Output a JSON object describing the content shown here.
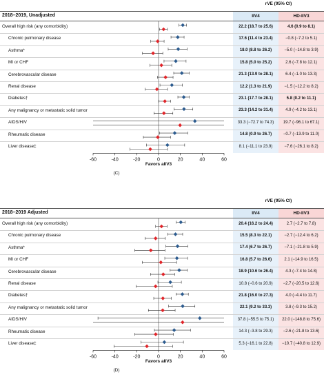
{
  "chart_data": [
    {
      "type": "forest",
      "panel_label": "(C)",
      "title": "2018–2019, Unadjusted",
      "column_header": "rVE (95% CI)",
      "columns": [
        "IIV4",
        "HD-IIV3"
      ],
      "xlabel": "Favors aIIV3",
      "xlim": [
        -60,
        60
      ],
      "xticks": [
        -60,
        -40,
        -20,
        0,
        20,
        40,
        60
      ],
      "colors": {
        "iiv4": "#2c5b8e",
        "hd_iiv3": "#e0252a"
      },
      "rows": [
        {
          "label": "Overall high risk (any comorbidity)",
          "indent": false,
          "iiv4": {
            "text": "22.2 (18.7 to 25.6)",
            "bold": true,
            "est": 22.2,
            "lo": 18.7,
            "hi": 25.6
          },
          "hd": {
            "text": "4.6 (0.9 to 8.1)",
            "bold": true,
            "est": 4.6,
            "lo": 0.9,
            "hi": 8.1
          }
        },
        {
          "label": "Chronic pulmonary disease",
          "indent": true,
          "iiv4": {
            "text": "17.6 (11.4 to 23.4)",
            "bold": true,
            "est": 17.6,
            "lo": 11.4,
            "hi": 23.4
          },
          "hd": {
            "text": "−0.8 (−7.2 to 5.1)",
            "bold": false,
            "est": -0.8,
            "lo": -7.2,
            "hi": 5.1
          }
        },
        {
          "label": "Asthma*",
          "indent": true,
          "iiv4": {
            "text": "18.0 (8.8 to 26.2)",
            "bold": true,
            "est": 18.0,
            "lo": 8.8,
            "hi": 26.2
          },
          "hd": {
            "text": "−5.0 (−14.8 to 3.9)",
            "bold": false,
            "est": -5.0,
            "lo": -14.8,
            "hi": 3.9
          }
        },
        {
          "label": "MI or CHF",
          "indent": true,
          "iiv4": {
            "text": "15.8 (5.0 to 25.2)",
            "bold": true,
            "est": 15.8,
            "lo": 5.0,
            "hi": 25.2
          },
          "hd": {
            "text": "2.6 (−7.8 to 12.1)",
            "bold": false,
            "est": 2.6,
            "lo": -7.8,
            "hi": 12.1
          }
        },
        {
          "label": "Cerebrovascular disease",
          "indent": true,
          "iiv4": {
            "text": "21.3 (13.9 to 28.1)",
            "bold": true,
            "est": 21.3,
            "lo": 13.9,
            "hi": 28.1
          },
          "hd": {
            "text": "6.4 (−1.0 to 13.3)",
            "bold": false,
            "est": 6.4,
            "lo": -1.0,
            "hi": 13.3
          }
        },
        {
          "label": "Renal disease",
          "indent": true,
          "iiv4": {
            "text": "12.2 (1.3 to 21.9)",
            "bold": true,
            "est": 12.2,
            "lo": 1.3,
            "hi": 21.9
          },
          "hd": {
            "text": "−1.5 (−12.2 to 8.2)",
            "bold": false,
            "est": -1.5,
            "lo": -12.2,
            "hi": 8.2
          }
        },
        {
          "label": "Diabetes†",
          "indent": true,
          "iiv4": {
            "text": "23.1 (17.7 to 28.1)",
            "bold": true,
            "est": 23.1,
            "lo": 17.7,
            "hi": 28.1
          },
          "hd": {
            "text": "5.8 (0.2 to 11.1)",
            "bold": true,
            "est": 5.8,
            "lo": 0.2,
            "hi": 11.1
          }
        },
        {
          "label": "Any malignancy or metastatic solid tumor",
          "indent": true,
          "iiv4": {
            "text": "23.3 (14.2 to 31.4)",
            "bold": true,
            "est": 23.3,
            "lo": 14.2,
            "hi": 31.4
          },
          "hd": {
            "text": "4.9 (−4.2 to 13.1)",
            "bold": false,
            "est": 4.9,
            "lo": -4.2,
            "hi": 13.1
          }
        },
        {
          "label": "AIDS/HIV",
          "indent": true,
          "iiv4": {
            "text": "33.3 (−72.7 to 74.3)",
            "bold": false,
            "est": 33.3,
            "lo": -72.7,
            "hi": 74.3
          },
          "hd": {
            "text": "19.7 (−96.1 to 67.1)",
            "bold": false,
            "est": 19.7,
            "lo": -96.1,
            "hi": 67.1
          }
        },
        {
          "label": "Rheumatic disease",
          "indent": true,
          "iiv4": {
            "text": "14.8 (0.9 to 26.7)",
            "bold": true,
            "est": 14.8,
            "lo": 0.9,
            "hi": 26.7
          },
          "hd": {
            "text": "−0.7 (−13.9 to 11.0)",
            "bold": false,
            "est": -0.7,
            "lo": -13.9,
            "hi": 11.0
          }
        },
        {
          "label": "Liver disease‡",
          "indent": true,
          "iiv4": {
            "text": "8.1 (−11.1 to 23.9)",
            "bold": false,
            "est": 8.1,
            "lo": -11.1,
            "hi": 23.9
          },
          "hd": {
            "text": "−7.6 (−26.1 to 8.2)",
            "bold": false,
            "est": -7.6,
            "lo": -26.1,
            "hi": 8.2
          }
        }
      ]
    },
    {
      "type": "forest",
      "panel_label": "(D)",
      "title": "2018–2019 Adjusted",
      "column_header": "rVE (95% CI)",
      "columns": [
        "IIV4",
        "HD-IIV3"
      ],
      "xlabel": "Favors aIIV3",
      "xlim": [
        -60,
        60
      ],
      "xticks": [
        -60,
        -40,
        -20,
        0,
        20,
        40,
        60
      ],
      "colors": {
        "iiv4": "#2c5b8e",
        "hd_iiv3": "#e0252a"
      },
      "rows": [
        {
          "label": "Overall high risk (any comorbidity)",
          "indent": false,
          "iiv4": {
            "text": "20.4 (16.2 to 24.4)",
            "bold": true,
            "est": 20.4,
            "lo": 16.2,
            "hi": 24.4
          },
          "hd": {
            "text": "2.7 (−2.7 to 7.8)",
            "bold": false,
            "est": 2.7,
            "lo": -2.7,
            "hi": 7.8
          }
        },
        {
          "label": "Chronic pulmonary disease",
          "indent": true,
          "iiv4": {
            "text": "15.5 (8.3 to 22.1)",
            "bold": true,
            "est": 15.5,
            "lo": 8.3,
            "hi": 22.1
          },
          "hd": {
            "text": "−2.7 (−12.4 to 6.2)",
            "bold": false,
            "est": -2.7,
            "lo": -12.4,
            "hi": 6.2
          }
        },
        {
          "label": "Asthma*",
          "indent": true,
          "iiv4": {
            "text": "17.4 (6.7 to 26.7)",
            "bold": true,
            "est": 17.4,
            "lo": 6.7,
            "hi": 26.7
          },
          "hd": {
            "text": "−7.1 (−21.8 to 5.9)",
            "bold": false,
            "est": -7.1,
            "lo": -21.8,
            "hi": 5.9
          }
        },
        {
          "label": "MI or CHF",
          "indent": true,
          "iiv4": {
            "text": "16.8 (5.7 to 26.6)",
            "bold": true,
            "est": 16.8,
            "lo": 5.7,
            "hi": 26.6
          },
          "hd": {
            "text": "2.1 (−14.9 to 16.5)",
            "bold": false,
            "est": 2.1,
            "lo": -14.9,
            "hi": 16.5
          }
        },
        {
          "label": "Cerebrovascular disease",
          "indent": true,
          "iiv4": {
            "text": "18.9 (10.6 to 26.4)",
            "bold": true,
            "est": 18.9,
            "lo": 10.6,
            "hi": 26.4
          },
          "hd": {
            "text": "4.3 (−7.4 to 14.8)",
            "bold": false,
            "est": 4.3,
            "lo": -7.4,
            "hi": 14.8
          }
        },
        {
          "label": "Renal disease",
          "indent": true,
          "iiv4": {
            "text": "10.8 (−0.6 to 20.9)",
            "bold": false,
            "est": 10.8,
            "lo": -0.6,
            "hi": 20.9
          },
          "hd": {
            "text": "−2.7 (−20.5 to 12.6)",
            "bold": false,
            "est": -2.7,
            "lo": -20.5,
            "hi": 12.6
          }
        },
        {
          "label": "Diabetes†",
          "indent": true,
          "iiv4": {
            "text": "21.8 (16.0 to 27.3)",
            "bold": true,
            "est": 21.8,
            "lo": 16.0,
            "hi": 27.3
          },
          "hd": {
            "text": "4.0 (−4.4 to 11.7)",
            "bold": false,
            "est": 4.0,
            "lo": -4.4,
            "hi": 11.7
          }
        },
        {
          "label": "Any malignancy or metastatic solid tumor",
          "indent": true,
          "iiv4": {
            "text": "22.1 (9.2 to 33.3)",
            "bold": true,
            "est": 22.1,
            "lo": 9.2,
            "hi": 33.3
          },
          "hd": {
            "text": "3.8 (−9.3 to 15.2)",
            "bold": false,
            "est": 3.8,
            "lo": -9.3,
            "hi": 15.2
          }
        },
        {
          "label": "AIDS/HIV",
          "indent": true,
          "iiv4": {
            "text": "37.8 (−55.5 to 75.1)",
            "bold": false,
            "est": 37.8,
            "lo": -55.5,
            "hi": 75.1
          },
          "hd": {
            "text": "22.0 (−148.8 to 75.6)",
            "bold": false,
            "est": 22.0,
            "lo": -148.8,
            "hi": 75.6
          }
        },
        {
          "label": "Rheumatic disease",
          "indent": true,
          "iiv4": {
            "text": "14.3 (−3.8 to 29.3)",
            "bold": false,
            "est": 14.3,
            "lo": -3.8,
            "hi": 29.3
          },
          "hd": {
            "text": "−2.6 (−21.8 to 13.6)",
            "bold": false,
            "est": -2.6,
            "lo": -21.8,
            "hi": 13.6
          }
        },
        {
          "label": "Liver disease‡",
          "indent": true,
          "iiv4": {
            "text": "5.3 (−16.1 to 22.8)",
            "bold": false,
            "est": 5.3,
            "lo": -16.1,
            "hi": 22.8
          },
          "hd": {
            "text": "−10.7 (−40.8 to 12.9)",
            "bold": false,
            "est": -10.7,
            "lo": -40.8,
            "hi": 12.9
          }
        }
      ]
    }
  ]
}
